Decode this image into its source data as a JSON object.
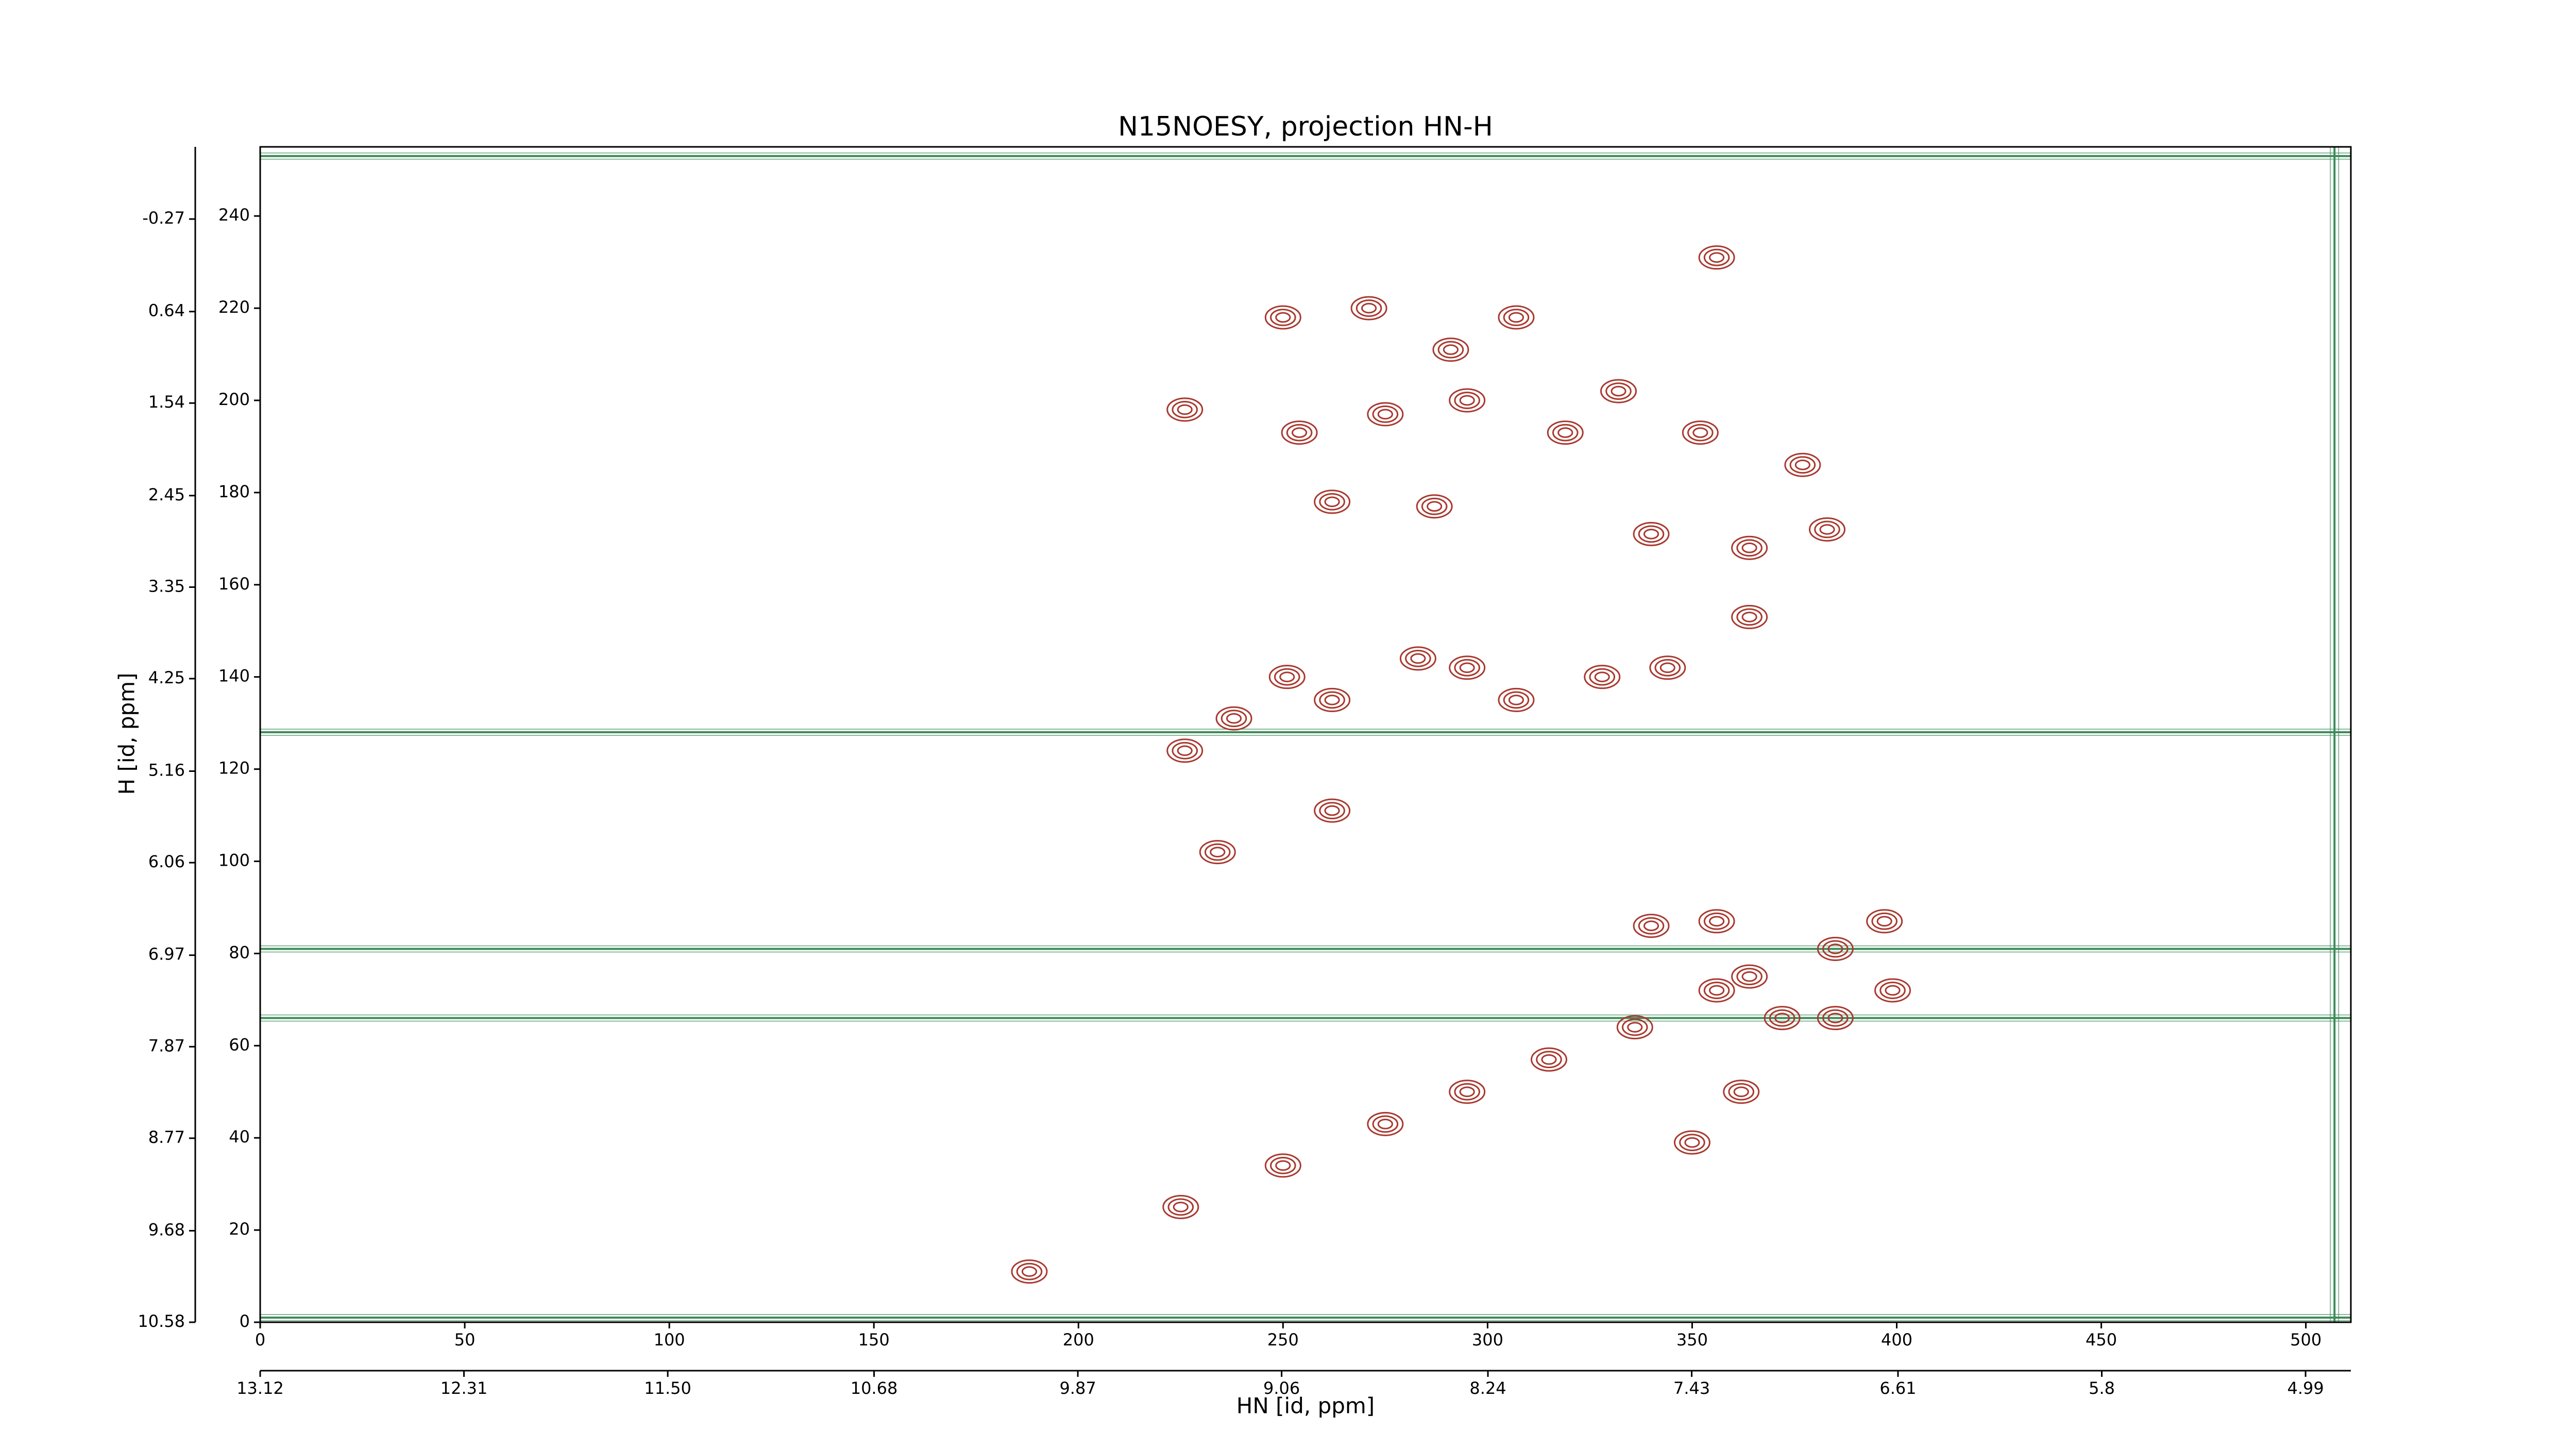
{
  "chart_data": {
    "type": "contour",
    "title": "N15NOESY, projection HN-H",
    "xlabel": "HN [id, ppm]",
    "ylabel": "H [id, ppm]",
    "xlim": [
      0,
      511
    ],
    "ylim": [
      0,
      255
    ],
    "xticks": [
      0,
      50,
      100,
      150,
      200,
      250,
      300,
      350,
      400,
      450,
      500
    ],
    "yticks": [
      0,
      20,
      40,
      60,
      80,
      100,
      120,
      140,
      160,
      180,
      200,
      220,
      240
    ],
    "x2lim": [
      13.12,
      4.81
    ],
    "x2ticks": [
      13.12,
      12.31,
      {
        "value": 11.5,
        "label": "11.50"
      },
      10.68,
      9.87,
      9.06,
      8.24,
      7.43,
      6.61,
      5.8,
      4.99
    ],
    "y2lim": [
      10.58,
      -0.98
    ],
    "y2ticks": [
      10.58,
      9.68,
      8.77,
      7.87,
      6.97,
      6.06,
      5.16,
      4.25,
      3.35,
      2.45,
      1.54,
      0.64,
      -0.27
    ],
    "series": [
      {
        "color": "#a8392f",
        "x": [
          188,
          225,
          250,
          275,
          295,
          315,
          336,
          356,
          364,
          350,
          362,
          340,
          356,
          372,
          385,
          399,
          397,
          385,
          226,
          238,
          251,
          262,
          283,
          295,
          307,
          328,
          344,
          364,
          262,
          234,
          250,
          271,
          291,
          307,
          356,
          226,
          254,
          275,
          295,
          319,
          332,
          352,
          377,
          340,
          383,
          287,
          262,
          364
        ],
        "values": [
          11,
          25,
          34,
          43,
          50,
          57,
          64,
          72,
          75,
          39,
          50,
          86,
          87,
          66,
          66,
          72,
          87,
          81,
          124,
          131,
          140,
          135,
          144,
          142,
          135,
          140,
          142,
          153,
          111,
          102,
          218,
          220,
          211,
          218,
          231,
          198,
          193,
          197,
          200,
          193,
          202,
          193,
          186,
          171,
          172,
          177,
          178,
          168
        ]
      }
    ],
    "hlines": {
      "color": "#3d8b5a",
      "values": [
        253,
        128,
        81,
        66,
        1
      ]
    },
    "vlines": {
      "color": "#3d8b5a",
      "values": [
        507
      ]
    }
  }
}
